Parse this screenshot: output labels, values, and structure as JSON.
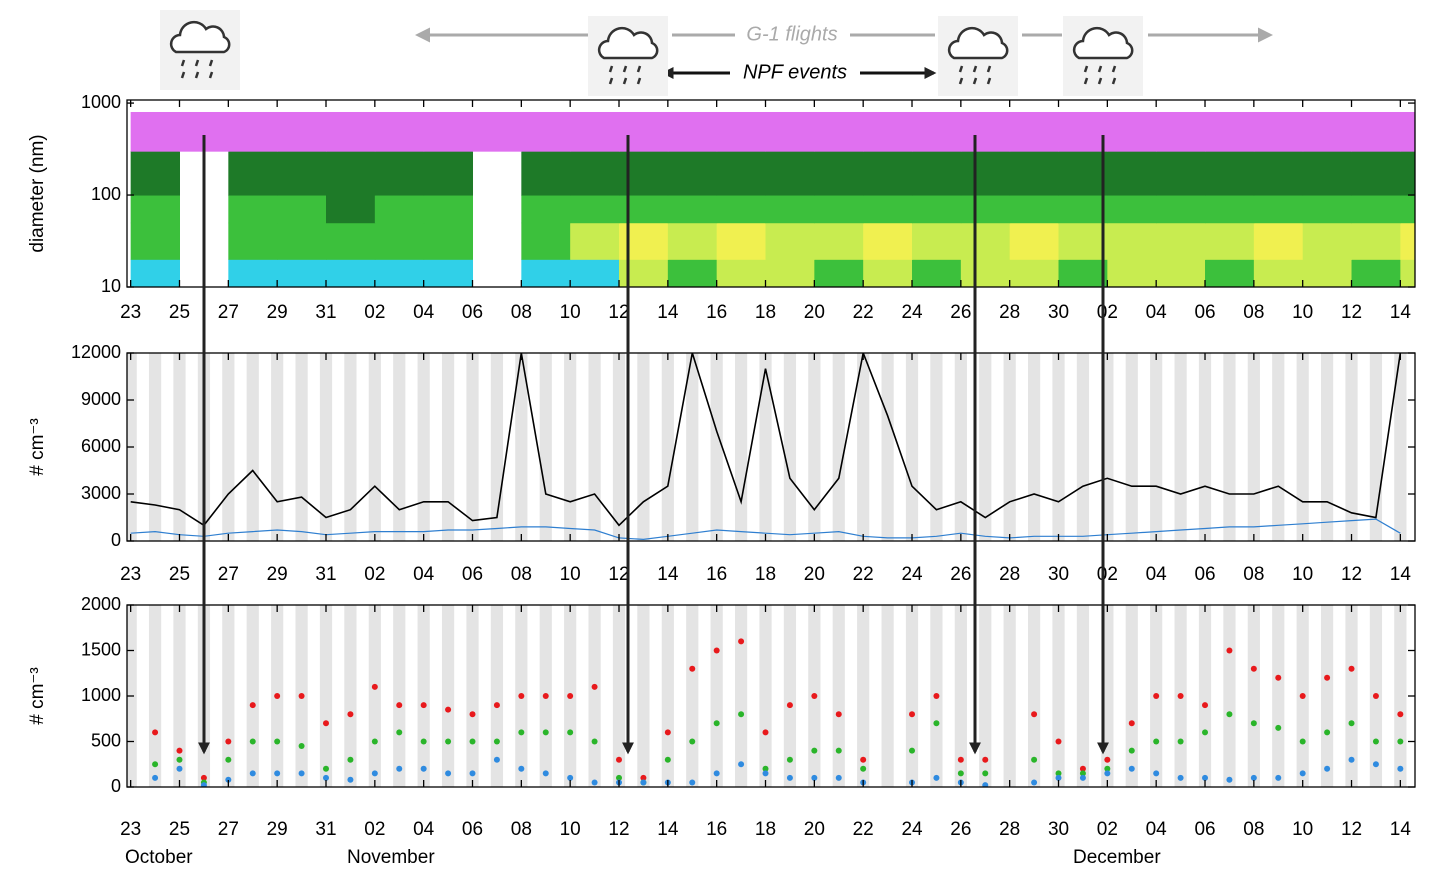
{
  "annotations": {
    "g1_flights": "G-1 flights",
    "npf_events": "NPF events"
  },
  "month_labels": [
    "October",
    "November",
    "December"
  ],
  "chart_data": [
    {
      "type": "heatmap",
      "ylabel": "diameter (nm)",
      "log_y": true,
      "x": [
        0,
        2,
        4,
        6,
        8,
        10,
        12,
        14,
        16,
        18,
        20,
        22,
        24,
        26,
        28,
        30,
        32,
        34,
        36,
        38,
        40,
        42,
        44,
        46,
        48,
        50,
        52
      ],
      "y_bins": [
        10,
        20,
        50,
        100,
        300,
        800
      ],
      "colormap": [
        "#ffffff",
        "#e070f0",
        "#3040e0",
        "#30d0e8",
        "#1e7a28",
        "#3cc03c",
        "#c8ec50",
        "#f0f050"
      ],
      "values": [
        [
          3,
          null,
          3,
          3,
          3,
          3,
          3,
          null,
          3,
          3,
          6,
          5,
          6,
          6,
          5,
          6,
          5,
          6,
          6,
          5,
          6,
          6,
          5,
          6,
          6,
          5,
          6
        ],
        [
          5,
          null,
          5,
          5,
          5,
          5,
          5,
          null,
          5,
          6,
          7,
          6,
          7,
          6,
          6,
          7,
          6,
          6,
          7,
          6,
          6,
          6,
          6,
          7,
          6,
          6,
          7
        ],
        [
          5,
          null,
          5,
          5,
          4,
          5,
          5,
          null,
          5,
          5,
          5,
          5,
          5,
          5,
          5,
          5,
          5,
          5,
          5,
          5,
          5,
          5,
          5,
          5,
          5,
          5,
          5
        ],
        [
          4,
          null,
          4,
          4,
          4,
          4,
          4,
          null,
          4,
          4,
          4,
          4,
          4,
          4,
          4,
          4,
          4,
          4,
          4,
          4,
          4,
          4,
          4,
          4,
          4,
          4,
          4
        ],
        [
          1,
          1,
          1,
          1,
          1,
          1,
          1,
          1,
          1,
          1,
          1,
          1,
          1,
          1,
          1,
          1,
          1,
          1,
          1,
          1,
          1,
          1,
          1,
          1,
          1,
          1,
          1
        ]
      ],
      "xlim": [
        -0.15,
        52.6
      ],
      "ylim": [
        10,
        1080
      ],
      "yticks": [
        10,
        100,
        1000
      ],
      "xticks": [
        {
          "value": 0,
          "label": "23"
        },
        {
          "value": 2,
          "label": "25"
        },
        {
          "value": 4,
          "label": "27"
        },
        {
          "value": 6,
          "label": "29"
        },
        {
          "value": 8,
          "label": "31"
        },
        {
          "value": 10,
          "label": "02"
        },
        {
          "value": 12,
          "label": "04"
        },
        {
          "value": 14,
          "label": "06"
        },
        {
          "value": 16,
          "label": "08"
        },
        {
          "value": 18,
          "label": "10"
        },
        {
          "value": 20,
          "label": "12"
        },
        {
          "value": 22,
          "label": "14"
        },
        {
          "value": 24,
          "label": "16"
        },
        {
          "value": 26,
          "label": "18"
        },
        {
          "value": 28,
          "label": "20"
        },
        {
          "value": 30,
          "label": "22"
        },
        {
          "value": 32,
          "label": "24"
        },
        {
          "value": 34,
          "label": "26"
        },
        {
          "value": 36,
          "label": "28"
        },
        {
          "value": 38,
          "label": "30"
        },
        {
          "value": 40,
          "label": "02"
        },
        {
          "value": 42,
          "label": "04"
        },
        {
          "value": 44,
          "label": "06"
        },
        {
          "value": 46,
          "label": "08"
        },
        {
          "value": 48,
          "label": "10"
        },
        {
          "value": 50,
          "label": "12"
        },
        {
          "value": 52,
          "label": "14"
        }
      ]
    },
    {
      "type": "line",
      "ylabel": "# cm⁻³",
      "x": [
        0,
        1,
        2,
        3,
        4,
        5,
        6,
        7,
        8,
        9,
        10,
        11,
        12,
        13,
        14,
        15,
        16,
        17,
        18,
        19,
        20,
        21,
        22,
        23,
        24,
        25,
        26,
        27,
        28,
        29,
        30,
        31,
        32,
        33,
        34,
        35,
        36,
        37,
        38,
        39,
        40,
        41,
        42,
        43,
        44,
        45,
        46,
        47,
        48,
        49,
        50,
        51,
        52
      ],
      "series": [
        {
          "color": "#000000",
          "values": [
            2500,
            2300,
            2000,
            1000,
            3000,
            4500,
            2500,
            2800,
            1500,
            2000,
            3500,
            2000,
            2500,
            2500,
            1300,
            1500,
            12000,
            3000,
            2500,
            3000,
            1000,
            2500,
            3500,
            12000,
            7000,
            2500,
            11000,
            4000,
            2000,
            4000,
            12000,
            8000,
            3500,
            2000,
            2500,
            1500,
            2500,
            3000,
            2500,
            3500,
            4000,
            3500,
            3500,
            3000,
            3500,
            3000,
            3000,
            3500,
            2500,
            2500,
            1800,
            1500,
            12000
          ]
        },
        {
          "color": "#2f7fd0",
          "values": [
            500,
            600,
            400,
            300,
            500,
            600,
            700,
            600,
            400,
            500,
            600,
            600,
            600,
            700,
            700,
            800,
            900,
            900,
            800,
            700,
            200,
            100,
            300,
            500,
            700,
            600,
            500,
            400,
            500,
            600,
            300,
            200,
            200,
            300,
            500,
            300,
            200,
            300,
            300,
            300,
            400,
            500,
            600,
            700,
            800,
            900,
            900,
            1000,
            1100,
            1200,
            1300,
            1400,
            500
          ]
        }
      ],
      "xlim": [
        -0.15,
        52.6
      ],
      "ylim": [
        0,
        12000
      ],
      "yticks": [
        0,
        3000,
        6000,
        9000,
        12000
      ],
      "xticks": [
        {
          "value": 0,
          "label": "23"
        },
        {
          "value": 2,
          "label": "25"
        },
        {
          "value": 4,
          "label": "27"
        },
        {
          "value": 6,
          "label": "29"
        },
        {
          "value": 8,
          "label": "31"
        },
        {
          "value": 10,
          "label": "02"
        },
        {
          "value": 12,
          "label": "04"
        },
        {
          "value": 14,
          "label": "06"
        },
        {
          "value": 16,
          "label": "08"
        },
        {
          "value": 18,
          "label": "10"
        },
        {
          "value": 20,
          "label": "12"
        },
        {
          "value": 22,
          "label": "14"
        },
        {
          "value": 24,
          "label": "16"
        },
        {
          "value": 26,
          "label": "18"
        },
        {
          "value": 28,
          "label": "20"
        },
        {
          "value": 30,
          "label": "22"
        },
        {
          "value": 32,
          "label": "24"
        },
        {
          "value": 34,
          "label": "26"
        },
        {
          "value": 36,
          "label": "28"
        },
        {
          "value": 38,
          "label": "30"
        },
        {
          "value": 40,
          "label": "02"
        },
        {
          "value": 42,
          "label": "04"
        },
        {
          "value": 44,
          "label": "06"
        },
        {
          "value": 46,
          "label": "08"
        },
        {
          "value": 48,
          "label": "10"
        },
        {
          "value": 50,
          "label": "12"
        },
        {
          "value": 52,
          "label": "14"
        }
      ]
    },
    {
      "type": "scatter",
      "ylabel": "# cm⁻³",
      "x": [
        0,
        1,
        2,
        3,
        4,
        5,
        6,
        7,
        8,
        9,
        10,
        11,
        12,
        13,
        14,
        15,
        16,
        17,
        18,
        19,
        20,
        21,
        22,
        23,
        24,
        25,
        26,
        27,
        28,
        29,
        30,
        31,
        32,
        33,
        34,
        35,
        36,
        37,
        38,
        39,
        40,
        41,
        42,
        43,
        44,
        45,
        46,
        47,
        48,
        49,
        50,
        51,
        52
      ],
      "series": [
        {
          "color": "#e8191c",
          "values": [
            null,
            600,
            400,
            100,
            500,
            900,
            1000,
            1000,
            700,
            800,
            1100,
            900,
            900,
            850,
            800,
            900,
            1000,
            1000,
            1000,
            1100,
            300,
            100,
            600,
            1300,
            1500,
            1600,
            600,
            900,
            1000,
            800,
            300,
            null,
            800,
            1000,
            300,
            300,
            null,
            800,
            500,
            200,
            300,
            700,
            1000,
            1000,
            900,
            1500,
            1300,
            1200,
            1000,
            1200,
            1300,
            1000,
            800
          ]
        },
        {
          "color": "#2ab52a",
          "values": [
            null,
            250,
            300,
            50,
            300,
            500,
            500,
            450,
            200,
            300,
            500,
            600,
            500,
            500,
            500,
            500,
            600,
            600,
            600,
            500,
            100,
            50,
            300,
            500,
            700,
            800,
            200,
            300,
            400,
            400,
            200,
            null,
            400,
            700,
            150,
            150,
            null,
            300,
            150,
            150,
            200,
            400,
            500,
            500,
            600,
            800,
            700,
            650,
            500,
            600,
            700,
            500,
            500
          ]
        },
        {
          "color": "#2f8be0",
          "values": [
            null,
            100,
            200,
            20,
            80,
            150,
            150,
            150,
            100,
            80,
            150,
            200,
            200,
            150,
            150,
            300,
            200,
            150,
            100,
            50,
            50,
            50,
            50,
            50,
            150,
            250,
            150,
            100,
            100,
            100,
            50,
            null,
            50,
            100,
            50,
            20,
            null,
            50,
            100,
            100,
            150,
            200,
            150,
            100,
            100,
            80,
            100,
            100,
            150,
            200,
            300,
            250,
            200
          ]
        }
      ],
      "xlim": [
        -0.15,
        52.6
      ],
      "ylim": [
        0,
        2000
      ],
      "yticks": [
        0,
        500,
        1000,
        1500,
        2000
      ],
      "xticks": [
        {
          "value": 0,
          "label": "23"
        },
        {
          "value": 2,
          "label": "25"
        },
        {
          "value": 4,
          "label": "27"
        },
        {
          "value": 6,
          "label": "29"
        },
        {
          "value": 8,
          "label": "31"
        },
        {
          "value": 10,
          "label": "02"
        },
        {
          "value": 12,
          "label": "04"
        },
        {
          "value": 14,
          "label": "06"
        },
        {
          "value": 16,
          "label": "08"
        },
        {
          "value": 18,
          "label": "10"
        },
        {
          "value": 20,
          "label": "12"
        },
        {
          "value": 22,
          "label": "14"
        },
        {
          "value": 24,
          "label": "16"
        },
        {
          "value": 26,
          "label": "18"
        },
        {
          "value": 28,
          "label": "20"
        },
        {
          "value": 30,
          "label": "22"
        },
        {
          "value": 32,
          "label": "24"
        },
        {
          "value": 34,
          "label": "26"
        },
        {
          "value": 36,
          "label": "28"
        },
        {
          "value": 38,
          "label": "30"
        },
        {
          "value": 40,
          "label": "02"
        },
        {
          "value": 42,
          "label": "04"
        },
        {
          "value": 44,
          "label": "06"
        },
        {
          "value": 46,
          "label": "08"
        },
        {
          "value": 48,
          "label": "10"
        },
        {
          "value": 50,
          "label": "12"
        },
        {
          "value": 52,
          "label": "14"
        }
      ]
    }
  ]
}
